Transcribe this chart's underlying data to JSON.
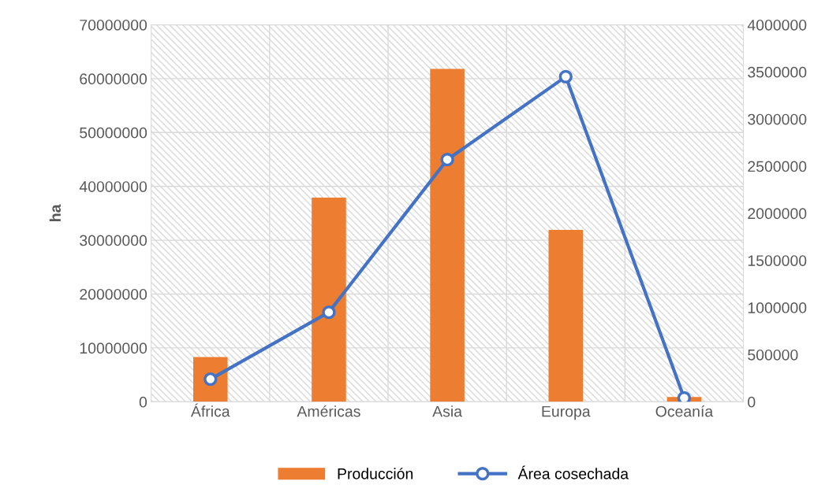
{
  "chart_data": {
    "type": "bar",
    "ylabel": "ha",
    "categories": [
      "África",
      "Américas",
      "Asia",
      "Europa",
      "Oceanía"
    ],
    "series": [
      {
        "name": "Producción",
        "color": "#ed7d31",
        "values": [
          8300000,
          37900000,
          61800000,
          31900000,
          900000
        ]
      },
      {
        "name": "Área cosechada",
        "type": "line",
        "axis": "y2",
        "color": "#4472c4",
        "marker": "circle",
        "values": [
          240000,
          950000,
          2570000,
          3450000,
          40000
        ]
      }
    ],
    "ylim": [
      0,
      70000000
    ],
    "yticks": [
      0,
      10000000,
      20000000,
      30000000,
      40000000,
      50000000,
      60000000,
      70000000
    ],
    "y2lim": [
      0,
      4000000
    ],
    "y2ticks": [
      0,
      500000,
      1000000,
      1500000,
      2000000,
      2500000,
      3000000,
      3500000,
      4000000
    ],
    "grid": true,
    "legend": "bottom"
  }
}
